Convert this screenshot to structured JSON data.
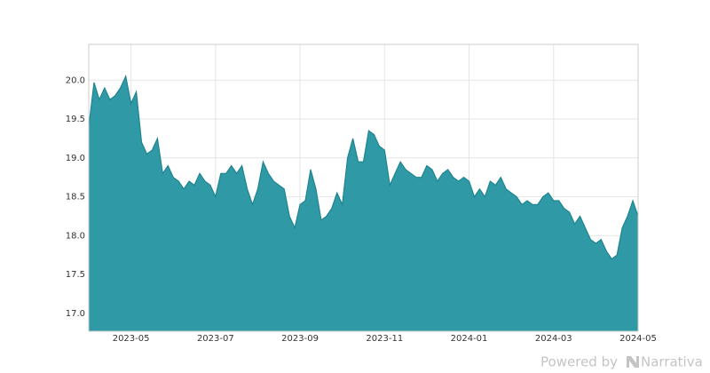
{
  "chart_data": {
    "type": "area",
    "categories": [
      null,
      null,
      null,
      null,
      null,
      null,
      null,
      null,
      "2023-05",
      null,
      null,
      null,
      null,
      null,
      null,
      null,
      null,
      null,
      null,
      null,
      null,
      null,
      null,
      null,
      "2023-07",
      null,
      null,
      null,
      null,
      null,
      null,
      null,
      null,
      null,
      null,
      null,
      null,
      null,
      null,
      null,
      "2023-09",
      null,
      null,
      null,
      null,
      null,
      null,
      null,
      null,
      null,
      null,
      null,
      null,
      null,
      null,
      null,
      "2023-11",
      null,
      null,
      null,
      null,
      null,
      null,
      null,
      null,
      null,
      null,
      null,
      null,
      null,
      null,
      null,
      "2024-01",
      null,
      null,
      null,
      null,
      null,
      null,
      null,
      null,
      null,
      null,
      null,
      null,
      null,
      null,
      null,
      "2024-03",
      null,
      null,
      null,
      null,
      null,
      null,
      null,
      null,
      null,
      null,
      null,
      null,
      null,
      null,
      null,
      "2024-05"
    ],
    "values": [
      19.4,
      19.97,
      19.75,
      19.9,
      19.75,
      19.8,
      19.9,
      20.05,
      19.7,
      19.85,
      19.2,
      19.05,
      19.1,
      19.25,
      18.8,
      18.9,
      18.75,
      18.7,
      18.6,
      18.7,
      18.65,
      18.8,
      18.7,
      18.65,
      18.5,
      18.8,
      18.8,
      18.9,
      18.8,
      18.9,
      18.6,
      18.4,
      18.6,
      18.95,
      18.8,
      18.7,
      18.65,
      18.6,
      18.25,
      18.1,
      18.4,
      18.45,
      18.85,
      18.6,
      18.2,
      18.25,
      18.35,
      18.55,
      18.4,
      19.0,
      19.25,
      18.95,
      18.95,
      19.35,
      19.3,
      19.15,
      19.1,
      18.65,
      18.8,
      18.95,
      18.85,
      18.8,
      18.75,
      18.75,
      18.9,
      18.85,
      18.7,
      18.8,
      18.85,
      18.75,
      18.7,
      18.75,
      18.7,
      18.5,
      18.6,
      18.5,
      18.7,
      18.65,
      18.75,
      18.6,
      18.55,
      18.5,
      18.4,
      18.45,
      18.4,
      18.4,
      18.5,
      18.55,
      18.45,
      18.45,
      18.35,
      18.3,
      18.15,
      18.25,
      18.1,
      17.95,
      17.9,
      17.95,
      17.8,
      17.7,
      17.75,
      18.1,
      18.25,
      18.45,
      18.25
    ],
    "color": "#2f9aa5",
    "line_color": "#1f8490",
    "ylim": [
      16.77,
      20.46
    ],
    "yticks": [
      {
        "value": 17.0,
        "label": "17.0"
      },
      {
        "value": 17.5,
        "label": "17.5"
      },
      {
        "value": 18.0,
        "label": "18.0"
      },
      {
        "value": 18.5,
        "label": "18.5"
      },
      {
        "value": 19.0,
        "label": "19.0"
      },
      {
        "value": 19.5,
        "label": "19.5"
      },
      {
        "value": 20.0,
        "label": "20.0"
      }
    ],
    "grid": true
  },
  "footer": {
    "powered": "Powered by",
    "brand": "Narrativa"
  }
}
